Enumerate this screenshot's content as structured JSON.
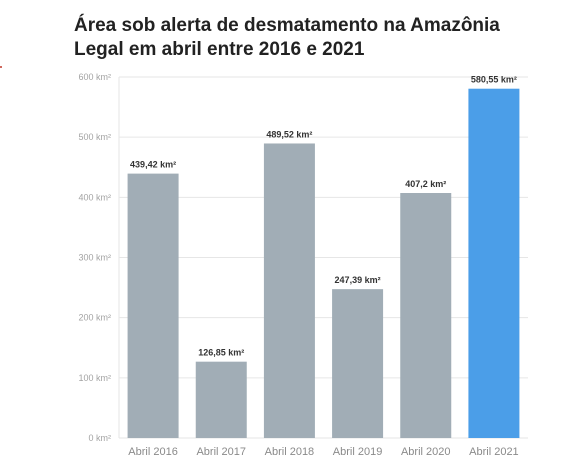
{
  "chart_data": {
    "type": "bar",
    "title": "Área sob alerta de desmatamento na Amazônia Legal em abril entre 2016 e 2021",
    "categories": [
      "Abril 2016",
      "Abril 2017",
      "Abril 2018",
      "Abril 2019",
      "Abril 2020",
      "Abril 2021"
    ],
    "values": [
      439.42,
      126.85,
      489.52,
      247.39,
      407.2,
      580.55
    ],
    "data_labels": [
      "439,42 km²",
      "126,85 km²",
      "489,52 km²",
      "247,39 km²",
      "407,2 km²",
      "580,55 km²"
    ],
    "yticks": [
      0,
      100,
      200,
      300,
      400,
      500,
      600
    ],
    "ytick_labels": [
      "0 km²",
      "100 km²",
      "200 km²",
      "300 km²",
      "400 km²",
      "500 km²",
      "600 km²"
    ],
    "ylim": [
      0,
      600
    ],
    "grid": true,
    "colors": {
      "default_bar": "#a1adb6",
      "highlight_bar": "#4b9ee8",
      "highlight_category": "Abril 2021",
      "gridline": "#e6e6e6"
    }
  }
}
